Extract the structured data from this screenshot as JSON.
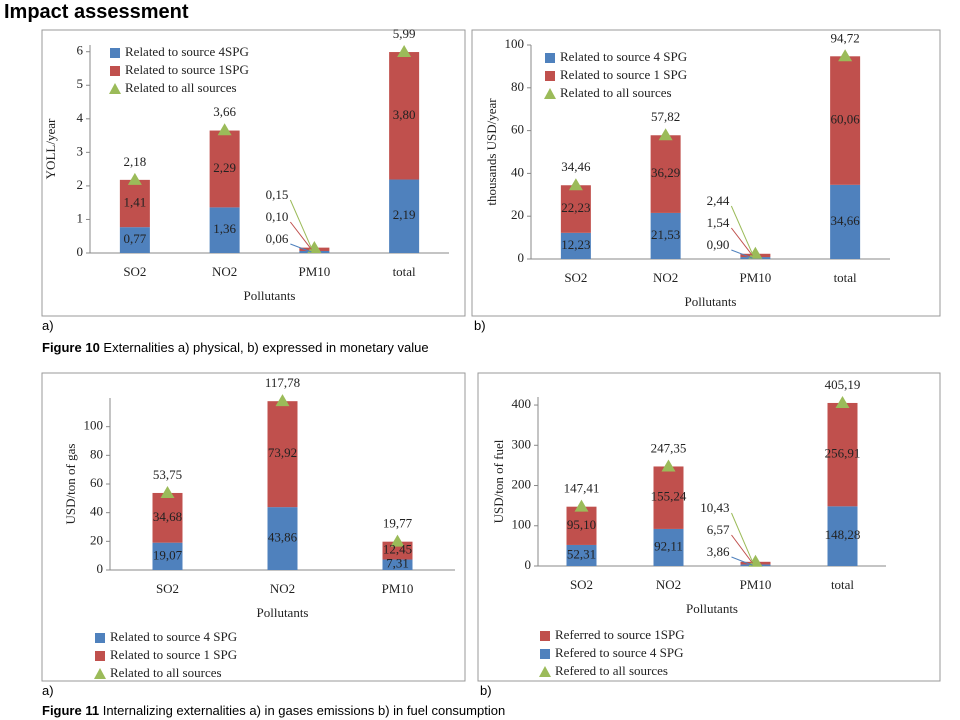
{
  "title": "Impact assessment",
  "captions": [
    {
      "text": "a)"
    },
    {
      "text": "b)"
    },
    {
      "label": "Figure 10",
      "text": "Externalities a) physical, b) expressed in monetary value"
    },
    {
      "text": "a)"
    },
    {
      "text": "b)"
    },
    {
      "label": "Figure 11",
      "text": "Internalizing  externalities a) in gases emissions b) in fuel consumption"
    }
  ],
  "chart_data": [
    {
      "type": "bar",
      "ylabel": "YOLL/year",
      "xlabel": "Pollutants",
      "categories": [
        "SO2",
        "NO2",
        "PM10",
        "total"
      ],
      "ylim": [
        0,
        6.2
      ],
      "yticks": [
        0,
        1,
        2,
        3,
        4,
        5,
        6
      ],
      "grid": false,
      "legend": "upper left",
      "stack_order": "normal",
      "series": [
        {
          "name": "Related to source 4SPG",
          "kind": "bar",
          "color": "#4f81bd",
          "values": [
            0.77,
            1.36,
            0.06,
            2.19
          ],
          "value_labels": [
            "0,77",
            "1,36",
            "0,06",
            "2,19"
          ]
        },
        {
          "name": "Related to source 1SPG",
          "kind": "bar",
          "color": "#c0504d",
          "values": [
            1.41,
            2.29,
            0.1,
            3.8
          ],
          "value_labels": [
            "1,41",
            "2,29",
            "0,10",
            "3,80"
          ]
        },
        {
          "name": "Related to all sources",
          "kind": "marker",
          "color": "#9bbb59",
          "values": [
            2.18,
            3.66,
            0.15,
            5.99
          ],
          "value_labels": [
            "2,18",
            "3,66",
            "0,15",
            "5,99"
          ]
        }
      ]
    },
    {
      "type": "bar",
      "ylabel": "thousands USD/year",
      "xlabel": "Pollutants",
      "categories": [
        "SO2",
        "NO2",
        "PM10",
        "total"
      ],
      "ylim": [
        0,
        100
      ],
      "yticks": [
        0,
        20,
        40,
        60,
        80,
        100
      ],
      "grid": false,
      "legend": "upper left",
      "stack_order": "normal",
      "series": [
        {
          "name": "Related to source 4 SPG",
          "kind": "bar",
          "color": "#4f81bd",
          "values": [
            12.23,
            21.53,
            0.9,
            34.66
          ],
          "value_labels": [
            "12,23",
            "21,53",
            "0,90",
            "34,66"
          ]
        },
        {
          "name": "Related to source 1 SPG",
          "kind": "bar",
          "color": "#c0504d",
          "values": [
            22.23,
            36.29,
            1.54,
            60.06
          ],
          "value_labels": [
            "22,23",
            "36,29",
            "1,54",
            "60,06"
          ]
        },
        {
          "name": "Related to all sources",
          "kind": "marker",
          "color": "#9bbb59",
          "values": [
            34.46,
            57.82,
            2.44,
            94.72
          ],
          "value_labels": [
            "34,46",
            "57,82",
            "2,44",
            "94,72"
          ]
        }
      ]
    },
    {
      "type": "bar",
      "ylabel": "USD/ton of gas",
      "xlabel": "Pollutants",
      "categories": [
        "SO2",
        "NO2",
        "PM10"
      ],
      "ylim": [
        0,
        120
      ],
      "yticks": [
        0,
        20,
        40,
        60,
        80,
        100
      ],
      "grid": false,
      "legend": "bottom",
      "stack_order": "normal",
      "series": [
        {
          "name": "Related to source 4 SPG",
          "kind": "bar",
          "color": "#4f81bd",
          "values": [
            19.07,
            43.86,
            7.31
          ],
          "value_labels": [
            "19,07",
            "43,86",
            "7,31"
          ]
        },
        {
          "name": "Related to source 1 SPG",
          "kind": "bar",
          "color": "#c0504d",
          "values": [
            34.68,
            73.92,
            12.45
          ],
          "value_labels": [
            "34,68",
            "73,92",
            "12,45"
          ]
        },
        {
          "name": "Related to all sources",
          "kind": "marker",
          "color": "#9bbb59",
          "values": [
            53.75,
            117.78,
            19.77
          ],
          "value_labels": [
            "53,75",
            "117,78",
            "19,77"
          ]
        }
      ]
    },
    {
      "type": "bar",
      "ylabel": "USD/ton of fuel",
      "xlabel": "Pollutants",
      "categories": [
        "SO2",
        "NO2",
        "PM10",
        "total"
      ],
      "ylim": [
        0,
        420
      ],
      "yticks": [
        0,
        100,
        200,
        300,
        400
      ],
      "grid": false,
      "legend": "bottom",
      "stack_order": "reversed",
      "series": [
        {
          "name": "Referred to source 1SPG",
          "kind": "bar",
          "color": "#c0504d",
          "values": [
            95.1,
            155.24,
            6.57,
            256.91
          ],
          "value_labels": [
            "95,10",
            "155,24",
            "6,57",
            "256,91"
          ]
        },
        {
          "name": "Refered to source 4 SPG",
          "kind": "bar",
          "color": "#4f81bd",
          "values": [
            52.31,
            92.11,
            3.86,
            148.28
          ],
          "value_labels": [
            "52,31",
            "92,11",
            "3,86",
            "148,28"
          ]
        },
        {
          "name": "Refered to all sources",
          "kind": "marker",
          "color": "#9bbb59",
          "values": [
            147.41,
            247.35,
            10.43,
            405.19
          ],
          "value_labels": [
            "147,41",
            "247,35",
            "10,43",
            "405,19"
          ]
        }
      ]
    }
  ]
}
